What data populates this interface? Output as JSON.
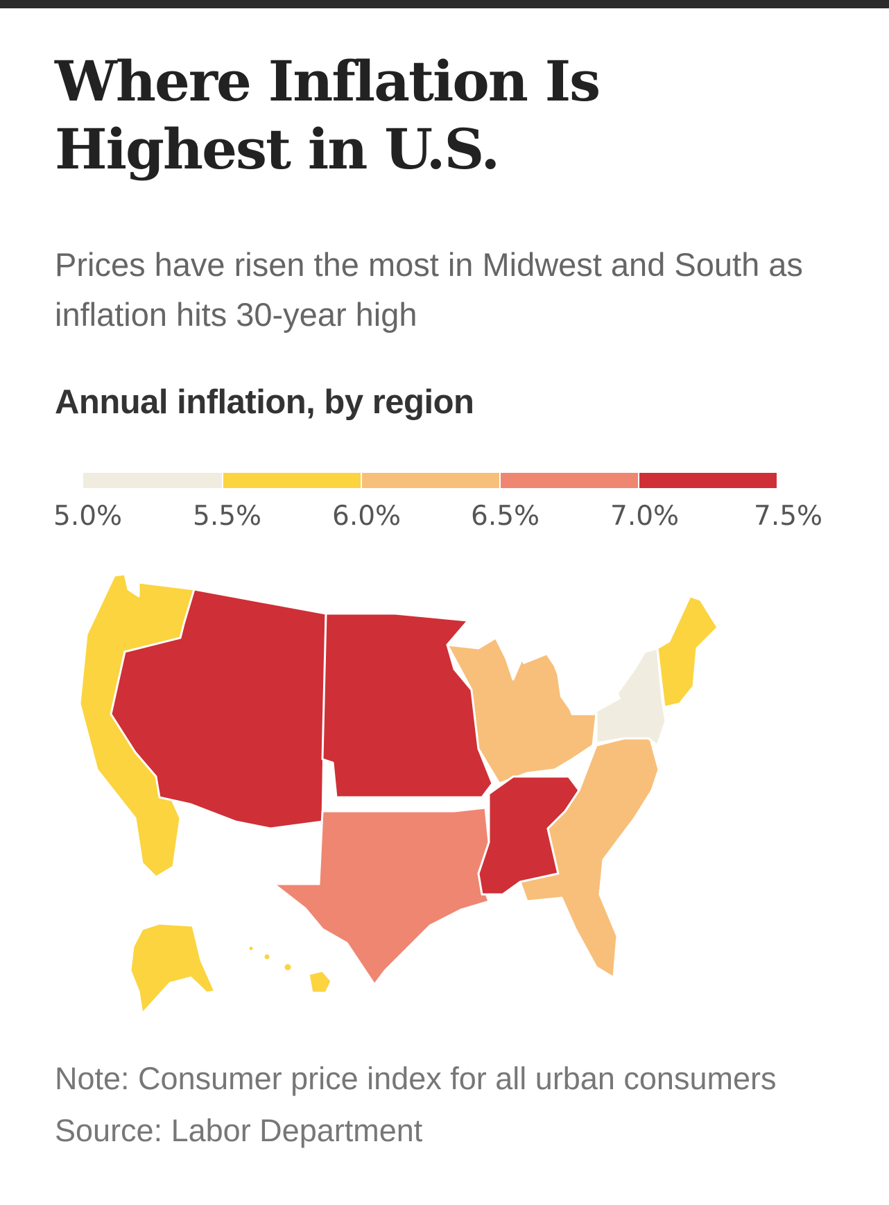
{
  "title": "Where Inflation Is Highest in U.S.",
  "subtitle": "Prices have risen the most in Midwest and South as inflation hits 30-year high",
  "chart_title": "Annual inflation, by region",
  "legend": {
    "ticks": [
      "5.0%",
      "5.5%",
      "6.0%",
      "6.5%",
      "7.0%",
      "7.5%"
    ],
    "bins": [
      {
        "range": "5.0%–5.5%",
        "color": "#f0ede0"
      },
      {
        "range": "5.5%–6.0%",
        "color": "#fbd43f"
      },
      {
        "range": "6.0%–6.5%",
        "color": "#f8bf7a"
      },
      {
        "range": "6.5%–7.0%",
        "color": "#ef8672"
      },
      {
        "range": "7.0%–7.5%",
        "color": "#cf2f36"
      }
    ]
  },
  "chart_data": {
    "type": "choropleth",
    "title": "Annual inflation, by region",
    "unit": "%",
    "scale_min": 5.0,
    "scale_max": 7.5,
    "regions": [
      {
        "name": "Mountain",
        "color": "#cf2f36",
        "bin": "7.0%–7.5%"
      },
      {
        "name": "West North Central",
        "color": "#cf2f36",
        "bin": "7.0%–7.5%"
      },
      {
        "name": "East South Central",
        "color": "#cf2f36",
        "bin": "7.0%–7.5%"
      },
      {
        "name": "West South Central",
        "color": "#ef8672",
        "bin": "6.5%–7.0%"
      },
      {
        "name": "East North Central",
        "color": "#f8bf7a",
        "bin": "6.0%–6.5%"
      },
      {
        "name": "South Atlantic",
        "color": "#f8bf7a",
        "bin": "6.0%–6.5%"
      },
      {
        "name": "Pacific",
        "color": "#fbd43f",
        "bin": "5.5%–6.0%"
      },
      {
        "name": "New England",
        "color": "#fbd43f",
        "bin": "5.5%–6.0%"
      },
      {
        "name": "Middle Atlantic",
        "color": "#f0ede0",
        "bin": "5.0%–5.5%"
      }
    ]
  },
  "note": "Note: Consumer price index for all urban consumers",
  "source": "Source: Labor Department"
}
